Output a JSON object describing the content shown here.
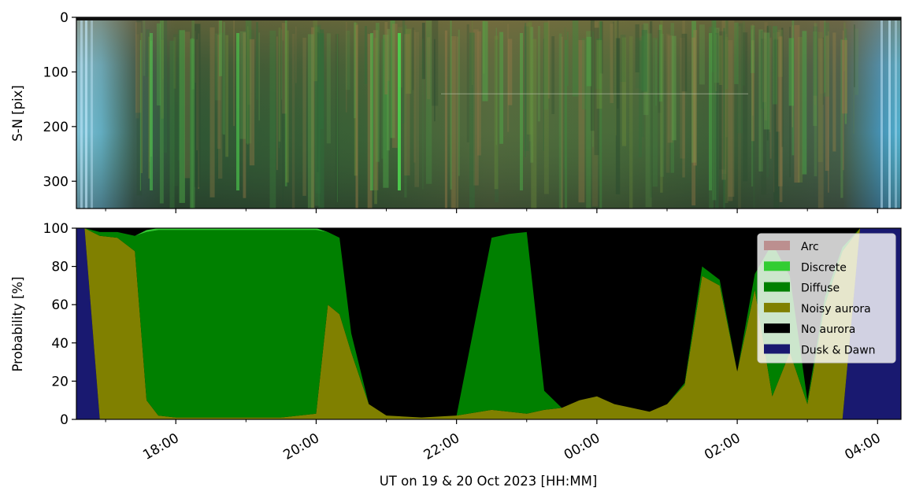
{
  "chart_data": [
    {
      "type": "heatmap",
      "description_source": "keogram image",
      "ylabel": "S-N [pix]",
      "yticks": [
        0,
        100,
        200,
        300
      ],
      "ylim": [
        350,
        0
      ],
      "xlim": [
        "2023-10-19 16:35",
        "2023-10-20 04:20"
      ],
      "colors": {
        "twilight": "#8ecdf0",
        "twilight_edge": "#4aa6e6",
        "aurora_green": "#2e7a3a",
        "aurora_brown": "#6f6a3e",
        "bright_green": "#4fd34f"
      }
    },
    {
      "type": "area",
      "stacked": true,
      "xlabel": "UT on 19 & 20 Oct 2023 [HH:MM]",
      "ylabel": "Probability [%]",
      "ylim": [
        0,
        100
      ],
      "yticks": [
        0,
        20,
        40,
        60,
        80,
        100
      ],
      "xticks": [
        "18:00",
        "20:00",
        "22:00",
        "00:00",
        "02:00",
        "04:00"
      ],
      "xlim": [
        "2023-10-19 16:35",
        "2023-10-20 04:20"
      ],
      "legend_position": "top-right",
      "series": [
        {
          "name": "Arc",
          "color": "#bc8f8f"
        },
        {
          "name": "Discrete",
          "color": "#32cd32"
        },
        {
          "name": "Diffuse",
          "color": "#008000"
        },
        {
          "name": "Noisy aurora",
          "color": "#808000"
        },
        {
          "name": "No aurora",
          "color": "#000000"
        },
        {
          "name": "Dusk & Dawn",
          "color": "#191970"
        }
      ],
      "time": [
        "16:35",
        "16:42",
        "16:55",
        "17:10",
        "17:25",
        "17:35",
        "17:45",
        "18:00",
        "18:30",
        "19:00",
        "19:30",
        "20:00",
        "20:10",
        "20:20",
        "20:30",
        "20:45",
        "21:00",
        "21:30",
        "22:00",
        "22:30",
        "22:45",
        "23:00",
        "23:15",
        "23:30",
        "23:45",
        "00:00",
        "00:15",
        "00:30",
        "00:45",
        "01:00",
        "01:15",
        "01:30",
        "01:45",
        "02:00",
        "02:15",
        "02:30",
        "02:45",
        "03:00",
        "03:15",
        "03:30",
        "03:45",
        "04:00",
        "04:20"
      ],
      "dusk_dawn": [
        100,
        100,
        0,
        0,
        0,
        0,
        0,
        0,
        0,
        0,
        0,
        0,
        0,
        0,
        0,
        0,
        0,
        0,
        0,
        0,
        0,
        0,
        0,
        0,
        0,
        0,
        0,
        0,
        0,
        0,
        0,
        0,
        0,
        0,
        0,
        0,
        0,
        0,
        0,
        0,
        100,
        100,
        100
      ],
      "noisy_aurora": [
        0,
        0,
        96,
        95,
        88,
        10,
        2,
        1,
        1,
        1,
        1,
        3,
        60,
        55,
        35,
        8,
        2,
        1,
        2,
        5,
        4,
        3,
        5,
        6,
        10,
        12,
        8,
        6,
        4,
        8,
        18,
        75,
        70,
        25,
        68,
        12,
        35,
        8,
        60,
        88,
        0,
        0,
        0
      ],
      "diffuse": [
        0,
        0,
        2,
        3,
        8,
        88,
        97,
        98,
        98,
        98,
        98,
        96,
        38,
        40,
        10,
        0,
        0,
        0,
        0,
        90,
        93,
        95,
        10,
        0,
        0,
        0,
        0,
        0,
        0,
        0,
        1,
        5,
        3,
        0,
        8,
        80,
        40,
        2,
        4,
        2,
        0,
        0,
        0
      ],
      "discrete": [
        0,
        0,
        0,
        0,
        0,
        1,
        1,
        1,
        1,
        1,
        1,
        1,
        0,
        0,
        0,
        0,
        0,
        0,
        0,
        0,
        0,
        0,
        0,
        0,
        0,
        0,
        0,
        0,
        0,
        0,
        0,
        0,
        0,
        0,
        0,
        0,
        0,
        0,
        0,
        0,
        0,
        0,
        0
      ],
      "arc": [
        0,
        0,
        0,
        0,
        0,
        0,
        0,
        0,
        0,
        0,
        0,
        0,
        0,
        0,
        0,
        0,
        0,
        0,
        0,
        0,
        0,
        0,
        0,
        0,
        0,
        0,
        0,
        0,
        0,
        0,
        0,
        0,
        0,
        0,
        0,
        0,
        0,
        0,
        0,
        0,
        0,
        0,
        0
      ]
    }
  ]
}
